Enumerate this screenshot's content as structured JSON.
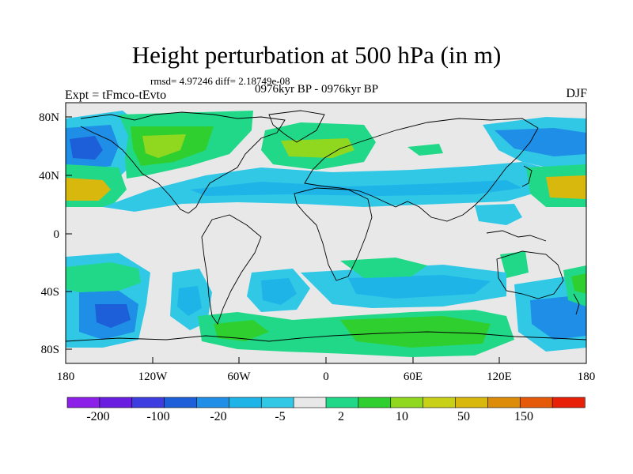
{
  "header": {
    "title": "Height perturbation at 500 hPa (in m)",
    "stats": "rmsd= 4.97246 diff= 2.18749e-08",
    "period": "0976kyr BP - 0976kyr BP",
    "experiment": "Expt = tFmco-tEvto",
    "season": "DJF"
  },
  "axes": {
    "y_ticks": [
      "80N",
      "40N",
      "0",
      "40S",
      "80S"
    ],
    "x_ticks": [
      "180",
      "120W",
      "60W",
      "0",
      "60E",
      "120E",
      "180"
    ]
  },
  "colorbar": {
    "labels": [
      "-200",
      "-100",
      "-20",
      "-5",
      "2",
      "10",
      "50",
      "150"
    ],
    "colors": [
      "#8c20e8",
      "#6a1fe0",
      "#3d3de0",
      "#1d5fd8",
      "#1e8ee6",
      "#1eb4e8",
      "#31c8e6",
      "#e8e8e8",
      "#20d888",
      "#30cf30",
      "#90d820",
      "#c8d018",
      "#d8b80c",
      "#dc8c08",
      "#e45a08",
      "#e82008"
    ]
  },
  "chart_data": {
    "type": "heatmap",
    "title": "Height perturbation at 500 hPa (in m)",
    "variable": "500 hPa geopotential height perturbation",
    "units": "m",
    "season": "DJF",
    "xlim": [
      -180,
      180
    ],
    "ylim": [
      -90,
      90
    ],
    "levels": [
      -200,
      -100,
      -20,
      -5,
      2,
      10,
      50,
      150
    ],
    "features": [
      {
        "region": "North Pacific / Gulf of Alaska",
        "sign": "negative"
      },
      {
        "region": "North America / Canada",
        "sign": "positive"
      },
      {
        "region": "North Atlantic",
        "sign": "positive"
      },
      {
        "region": "Mid-latitude northern Pacific (40N)",
        "sign": "positive"
      },
      {
        "region": "Eurasia band (30-45N)",
        "sign": "negative"
      },
      {
        "region": "South Pacific",
        "sign": "negative"
      },
      {
        "region": "Southern Ocean near Antarctica",
        "sign": "positive"
      }
    ]
  }
}
